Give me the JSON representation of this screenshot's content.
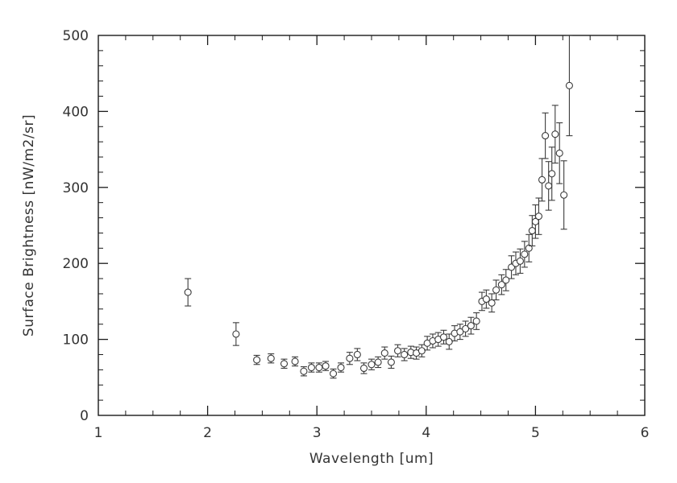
{
  "figure": {
    "background": "#ffffff",
    "axis_color": "#1a1a1a",
    "text_color": "#333333",
    "point_color": "#3c3c3c"
  },
  "chart_data": {
    "type": "scatter",
    "title": "",
    "xlabel": "Wavelength [um]",
    "ylabel": "Surface Brightness [nW/m2/sr]",
    "xlim": [
      1,
      6
    ],
    "ylim": [
      0,
      500
    ],
    "xticks": [
      1,
      2,
      3,
      4,
      5,
      6
    ],
    "yticks": [
      0,
      100,
      200,
      300,
      400,
      500
    ],
    "x_minor_step": 0.25,
    "y_minor_step": 20,
    "grid": false,
    "legend": "none",
    "marker": "open-circle",
    "error_bars": true,
    "x": [
      1.82,
      2.26,
      2.45,
      2.58,
      2.7,
      2.8,
      2.88,
      2.95,
      3.02,
      3.08,
      3.15,
      3.22,
      3.3,
      3.37,
      3.43,
      3.5,
      3.56,
      3.62,
      3.68,
      3.74,
      3.8,
      3.86,
      3.91,
      3.96,
      4.01,
      4.06,
      4.11,
      4.16,
      4.21,
      4.26,
      4.31,
      4.36,
      4.41,
      4.46,
      4.51,
      4.55,
      4.6,
      4.64,
      4.69,
      4.73,
      4.78,
      4.82,
      4.86,
      4.9,
      4.94,
      4.97,
      5.0,
      5.03,
      5.06,
      5.09,
      5.12,
      5.15,
      5.18,
      5.22,
      5.26,
      5.31
    ],
    "y": [
      162,
      107,
      73,
      75,
      68,
      71,
      58,
      63,
      63,
      65,
      55,
      63,
      75,
      80,
      62,
      67,
      70,
      82,
      70,
      85,
      80,
      83,
      82,
      85,
      95,
      98,
      100,
      103,
      97,
      108,
      110,
      114,
      118,
      124,
      150,
      153,
      148,
      165,
      172,
      178,
      195,
      200,
      203,
      212,
      220,
      243,
      255,
      262,
      310,
      368,
      302,
      318,
      370,
      345,
      290,
      434
    ],
    "yerr": [
      18,
      15,
      6,
      6,
      6,
      6,
      6,
      6,
      6,
      6,
      6,
      6,
      8,
      8,
      7,
      7,
      7,
      8,
      8,
      8,
      8,
      8,
      8,
      8,
      9,
      9,
      9,
      9,
      10,
      10,
      10,
      10,
      11,
      11,
      12,
      12,
      12,
      13,
      13,
      14,
      15,
      15,
      16,
      17,
      18,
      20,
      22,
      24,
      28,
      30,
      32,
      35,
      38,
      40,
      45,
      66
    ]
  }
}
